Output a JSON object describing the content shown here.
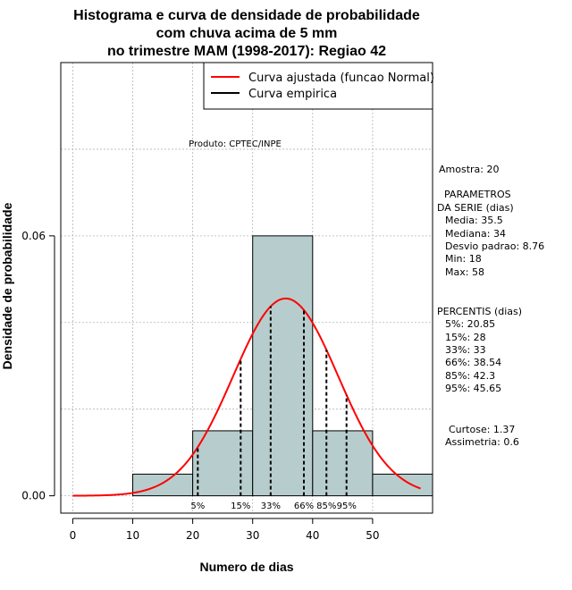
{
  "chart_data": {
    "type": "bar",
    "title_lines": [
      "Histograma e curva de densidade de probabilidade",
      "com chuva acima de 5 mm",
      "no trimestre MAM (1998-2017): Regiao 42"
    ],
    "xlabel": "Numero de dias",
    "ylabel": "Densidade de probabilidade",
    "xlim": [
      -2,
      60
    ],
    "ylim": [
      -0.004,
      0.1
    ],
    "x_ticks": [
      0,
      10,
      20,
      30,
      40,
      50
    ],
    "y_ticks": [
      0.0,
      0.06
    ],
    "y_tick_labels": [
      "0.00",
      "0.06"
    ],
    "bins": [
      {
        "from": 10,
        "to": 20,
        "density": 0.005
      },
      {
        "from": 20,
        "to": 30,
        "density": 0.015
      },
      {
        "from": 30,
        "to": 40,
        "density": 0.06
      },
      {
        "from": 40,
        "to": 50,
        "density": 0.015
      },
      {
        "from": 50,
        "to": 60,
        "density": 0.005
      }
    ],
    "bar_color": "#b7cdcd",
    "curve_color": "#ff0000",
    "fitted_normal": {
      "mean": 35.5,
      "sd": 8.76,
      "x_from": 0,
      "x_to": 58
    },
    "percentile_lines": [
      {
        "label": "5%",
        "x": 20.85
      },
      {
        "label": "15%",
        "x": 28
      },
      {
        "label": "33%",
        "x": 33
      },
      {
        "label": "66%",
        "x": 38.54
      },
      {
        "label": "85%",
        "x": 42.3
      },
      {
        "label": "95%",
        "x": 45.65
      }
    ],
    "legend": {
      "items": [
        {
          "label": "Curva ajustada (funcao Normal)",
          "color": "#ff0000"
        },
        {
          "label": "Curva empirica",
          "color": "#000000"
        }
      ],
      "position": "top-right"
    },
    "annotation": "Produto: CPTEC/INPE",
    "grid": true
  },
  "side_panel": {
    "amostra": "Amostra: 20",
    "param_header_1": "PARAMETROS",
    "param_header_2": "DA SERIE (dias)",
    "media": "Media: 35.5",
    "mediana": "Mediana: 34",
    "desvio": "Desvio padrao: 8.76",
    "min": "Min: 18",
    "max": "Max: 58",
    "percentis_header": "PERCENTIS (dias)",
    "p5": "5%: 20.85",
    "p15": "15%: 28",
    "p33": "33%: 33",
    "p66": "66%: 38.54",
    "p85": "85%: 42.3",
    "p95": "95%: 45.65",
    "curtose": "Curtose: 1.37",
    "assimetria": "Assimetria: 0.6"
  }
}
